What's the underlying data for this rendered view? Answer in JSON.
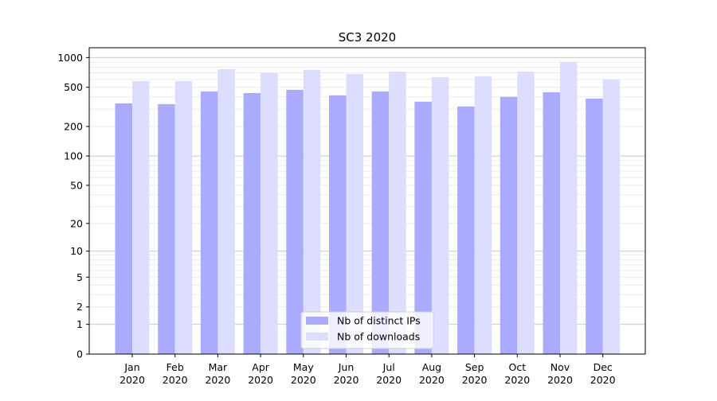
{
  "chart_data": {
    "type": "bar",
    "title": "SC3 2020",
    "xlabel": "",
    "ylabel": "",
    "yscale": "symlog",
    "ylim": [
      0,
      1300
    ],
    "yticks": [
      0,
      1,
      2,
      5,
      10,
      20,
      50,
      100,
      200,
      500,
      1000
    ],
    "grid": true,
    "legend_position": "bottom-center",
    "categories": [
      "Jan\n2020",
      "Feb\n2020",
      "Mar\n2020",
      "Apr\n2020",
      "May\n2020",
      "Jun\n2020",
      "Jul\n2020",
      "Aug\n2020",
      "Sep\n2020",
      "Oct\n2020",
      "Nov\n2020",
      "Dec\n2020"
    ],
    "series": [
      {
        "name": "Nb of distinct IPs",
        "color": "#aaaaff",
        "values": [
          343,
          337,
          454,
          437,
          471,
          414,
          454,
          357,
          319,
          399,
          445,
          384
        ]
      },
      {
        "name": "Nb of downloads",
        "color": "#ddddff",
        "values": [
          578,
          578,
          763,
          695,
          749,
          683,
          721,
          634,
          646,
          721,
          901,
          604
        ]
      }
    ]
  }
}
